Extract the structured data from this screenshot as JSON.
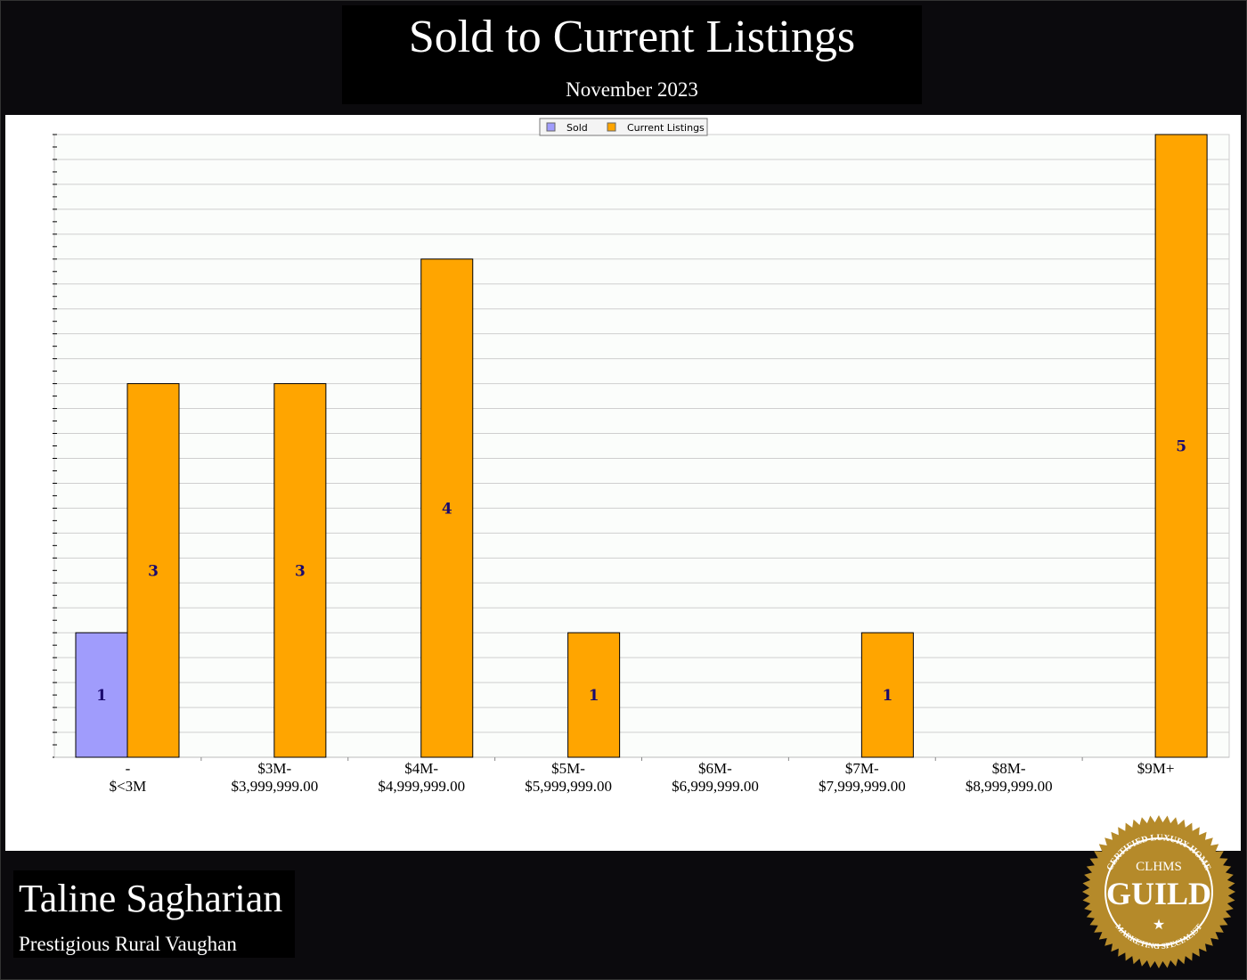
{
  "header": {
    "title": "Sold to Current Listings",
    "subtitle": "November 2023"
  },
  "footer": {
    "agent_name": "Taline Sagharian",
    "area": "Prestigious Rural Vaughan"
  },
  "logo": {
    "top_text": "CERTIFIED LUXURY HOME",
    "mark": "CLHMS",
    "word": "GUILD",
    "bottom_text": "MARKETING SPECIALIST"
  },
  "chart_data": {
    "type": "bar",
    "categories": [
      [
        "-",
        "$<3M"
      ],
      [
        "$3M-",
        "$3,999,999.00"
      ],
      [
        "$4M-",
        "$4,999,999.00"
      ],
      [
        "$5M-",
        "$5,999,999.00"
      ],
      [
        "$6M-",
        "$6,999,999.00"
      ],
      [
        "$7M-",
        "$7,999,999.00"
      ],
      [
        "$8M-",
        "$8,999,999.00"
      ],
      [
        "$9M+"
      ]
    ],
    "series": [
      {
        "name": "Sold",
        "color": "#a09cfc",
        "values": [
          1,
          0,
          0,
          0,
          0,
          0,
          0,
          0
        ]
      },
      {
        "name": "Current Listings",
        "color": "#ffa500",
        "values": [
          3,
          3,
          4,
          1,
          0,
          1,
          0,
          5
        ]
      }
    ],
    "ylim": [
      0,
      5
    ],
    "grid": true,
    "legend": "top-center",
    "data_label_color": "#1a0a6e"
  }
}
